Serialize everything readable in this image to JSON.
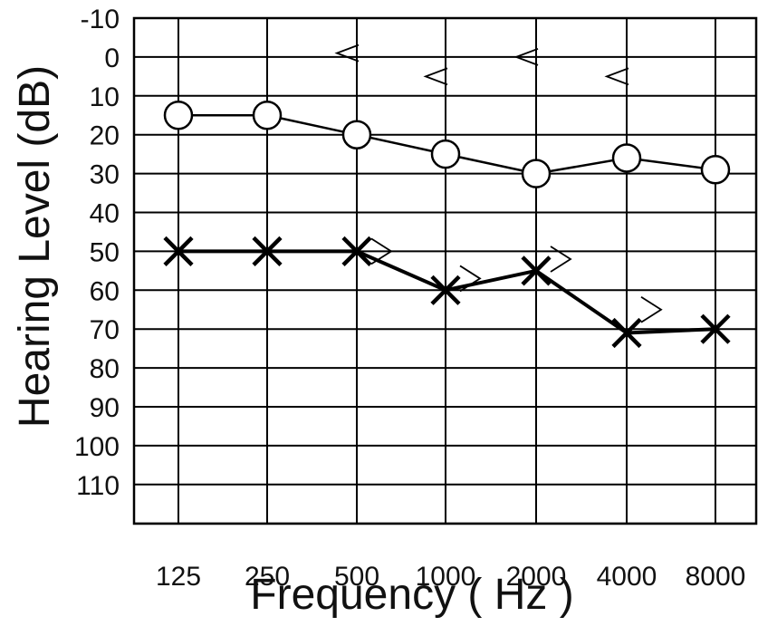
{
  "chart_data": {
    "type": "line",
    "title": "",
    "xlabel": "Frequency ( Hz )",
    "ylabel": "Hearing Level (dB)",
    "categories": [
      "125",
      "250",
      "500",
      "1000",
      "2000",
      "4000",
      "8000"
    ],
    "yticks": [
      "-10",
      "0",
      "10",
      "20",
      "30",
      "40",
      "50",
      "60",
      "70",
      "80",
      "90",
      "100",
      "110"
    ],
    "ylim": [
      -10,
      120
    ],
    "y_inverted": true,
    "grid": true,
    "series": [
      {
        "name": "",
        "marker": "circle",
        "color": "#000000",
        "values": [
          15,
          15,
          20,
          25,
          30,
          26,
          29
        ]
      },
      {
        "name": "",
        "marker": "x",
        "color": "#000000",
        "values": [
          50,
          50,
          50,
          60,
          55,
          71,
          70
        ]
      },
      {
        "name": "",
        "marker": "<",
        "color": "#000000",
        "x": [
          "500",
          "1000",
          "2000",
          "4000"
        ],
        "values": [
          -1,
          5,
          0,
          5
        ]
      },
      {
        "name": "",
        "marker": ">",
        "color": "#000000",
        "x": [
          "500",
          "1000",
          "2000",
          "4000"
        ],
        "values": [
          50,
          57,
          52,
          65
        ]
      }
    ]
  }
}
